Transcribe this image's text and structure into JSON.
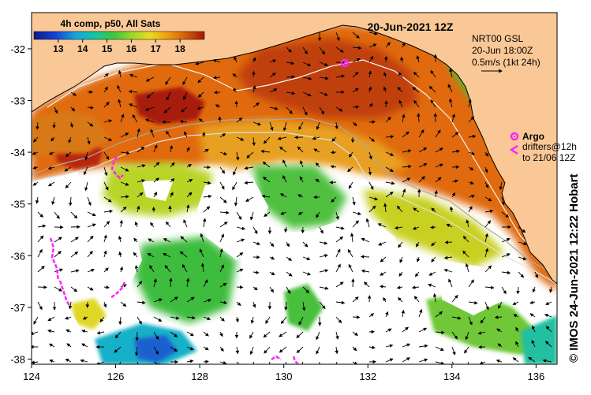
{
  "map": {
    "date_title": "20-Jun-2021 12Z",
    "colorbar": {
      "title": "4h comp, p50, All Sats",
      "tick_labels": [
        "13",
        "14",
        "15",
        "16",
        "17",
        "18"
      ],
      "range_degC": [
        12.0,
        19.0
      ]
    },
    "current_info": {
      "line1": "NRT00 GSL",
      "line2": "20-Jun 18:00Z",
      "line3": "0.5m/s (1kt 24h)"
    },
    "legend": {
      "argo_label": "Argo",
      "drifters_line1": "drifters@12h",
      "drifters_line2": "to 21/06 12Z"
    },
    "credit": "© IMOS 24-Jun-2021 12:22 Hobart",
    "x_ticks": [
      "124",
      "126",
      "128",
      "130",
      "132",
      "134",
      "136"
    ],
    "y_ticks": [
      "-32",
      "-33",
      "-34",
      "-35",
      "-36",
      "-37",
      "-38"
    ],
    "lon_range": [
      124,
      136.5
    ],
    "lat_range": [
      -38.1,
      -31.3
    ],
    "colors": {
      "land": "#fac896",
      "no_data": "#ffffff",
      "argo": "#ff22ff",
      "drifter": "#ff22ff",
      "contour": "#a8a8a8"
    }
  }
}
